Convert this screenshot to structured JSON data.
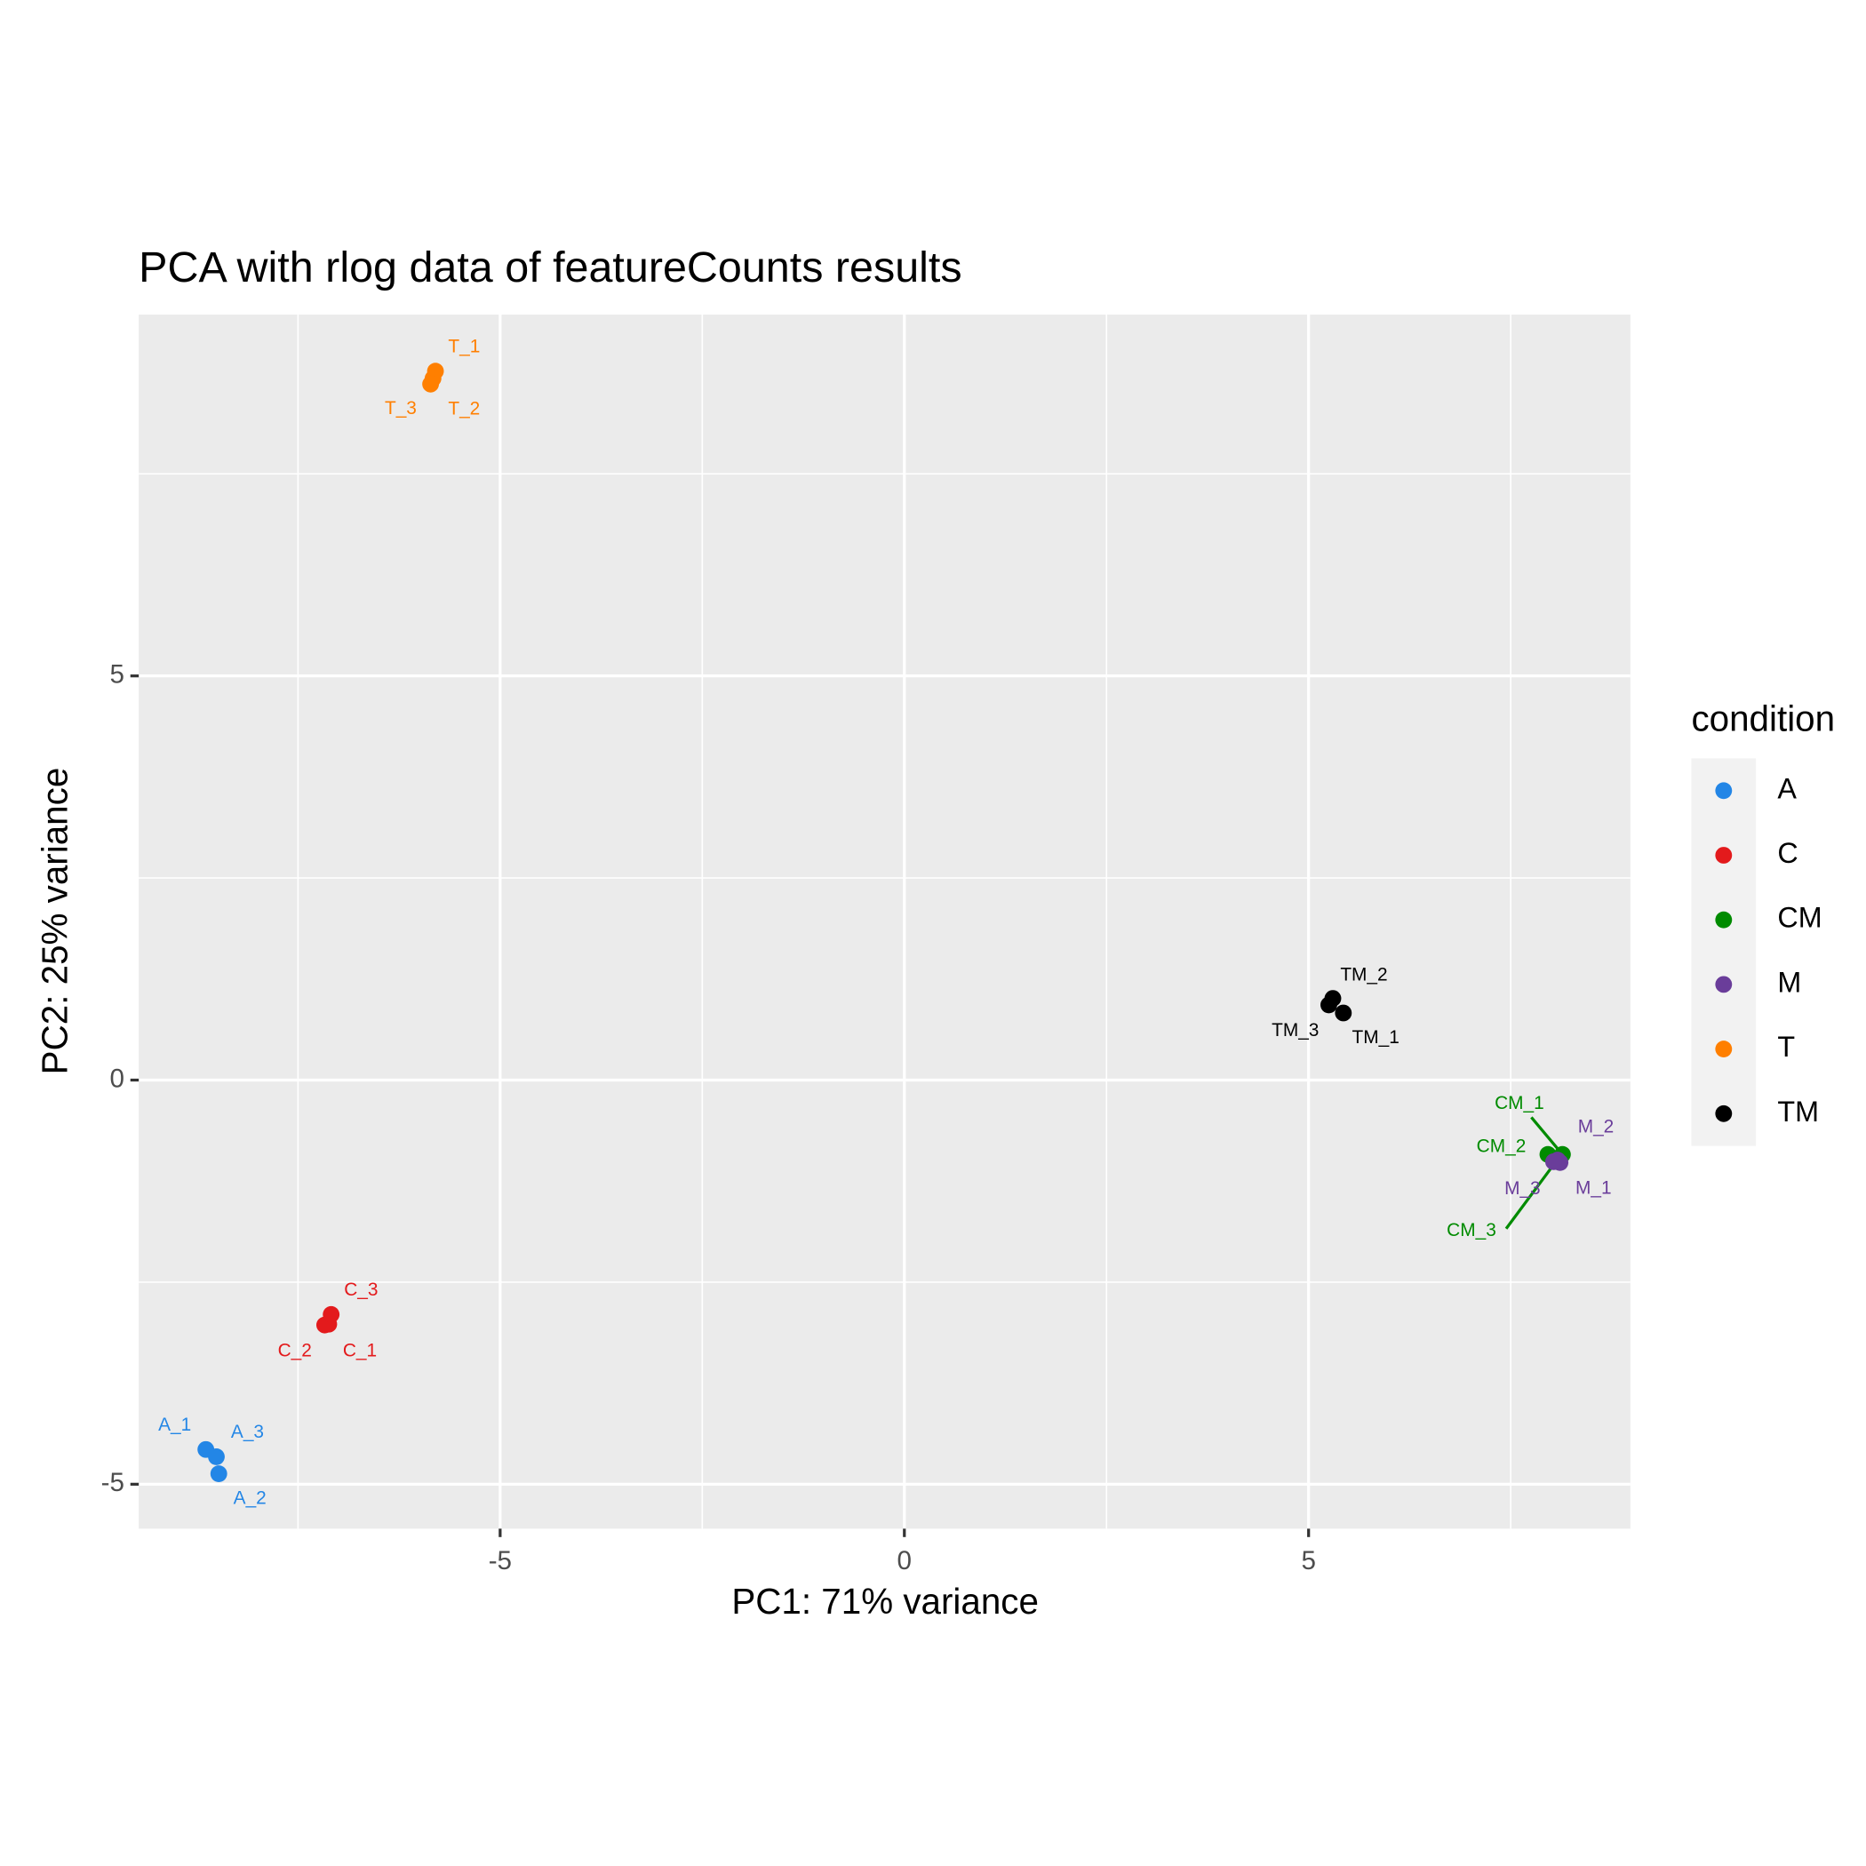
{
  "chart_data": {
    "type": "scatter",
    "title": "PCA with rlog data of featureCounts results",
    "x_label": "PC1: 71% variance",
    "y_label": "PC2: 25% variance",
    "legend_title": "condition",
    "legend": "right",
    "grid": true,
    "xlim": [
      -9.47,
      8.98
    ],
    "ylim": [
      -5.55,
      9.47
    ],
    "xticks": [
      -5,
      0,
      5
    ],
    "yticks": [
      -5,
      0,
      5
    ],
    "xminor": [
      -7.5,
      -2.5,
      2.5,
      7.5
    ],
    "yminor": [
      -2.5,
      2.5,
      7.5
    ],
    "series": [
      {
        "name": "A",
        "color": "#2386e6",
        "x": [
          -8.64,
          -8.48,
          -8.51
        ],
        "y": [
          -4.57,
          -4.87,
          -4.66
        ],
        "labels": [
          "A_1",
          "A_2",
          "A_3"
        ]
      },
      {
        "name": "C",
        "color": "#e31a1c",
        "x": [
          -7.12,
          -7.17,
          -7.09
        ],
        "y": [
          -3.02,
          -3.03,
          -2.9
        ],
        "labels": [
          "C_1",
          "C_2",
          "C_3"
        ]
      },
      {
        "name": "CM",
        "color": "#008b00",
        "x": [
          8.14,
          7.96,
          8.08
        ],
        "y": [
          -0.92,
          -0.92,
          -0.98
        ],
        "labels": [
          "CM_1",
          "CM_2",
          "CM_3"
        ]
      },
      {
        "name": "M",
        "color": "#6a3d9a",
        "x": [
          8.11,
          8.08,
          8.03
        ],
        "y": [
          -1.02,
          -0.99,
          -1.01
        ],
        "labels": [
          "M_1",
          "M_2",
          "M_3"
        ]
      },
      {
        "name": "T",
        "color": "#ff7f00",
        "x": [
          -5.8,
          -5.83,
          -5.86
        ],
        "y": [
          8.77,
          8.68,
          8.61
        ],
        "labels": [
          "T_1",
          "T_2",
          "T_3"
        ]
      },
      {
        "name": "TM",
        "color": "#000000",
        "x": [
          5.43,
          5.3,
          5.25
        ],
        "y": [
          0.83,
          1.01,
          0.93
        ],
        "labels": [
          "TM_1",
          "TM_2",
          "TM_3"
        ]
      }
    ]
  }
}
